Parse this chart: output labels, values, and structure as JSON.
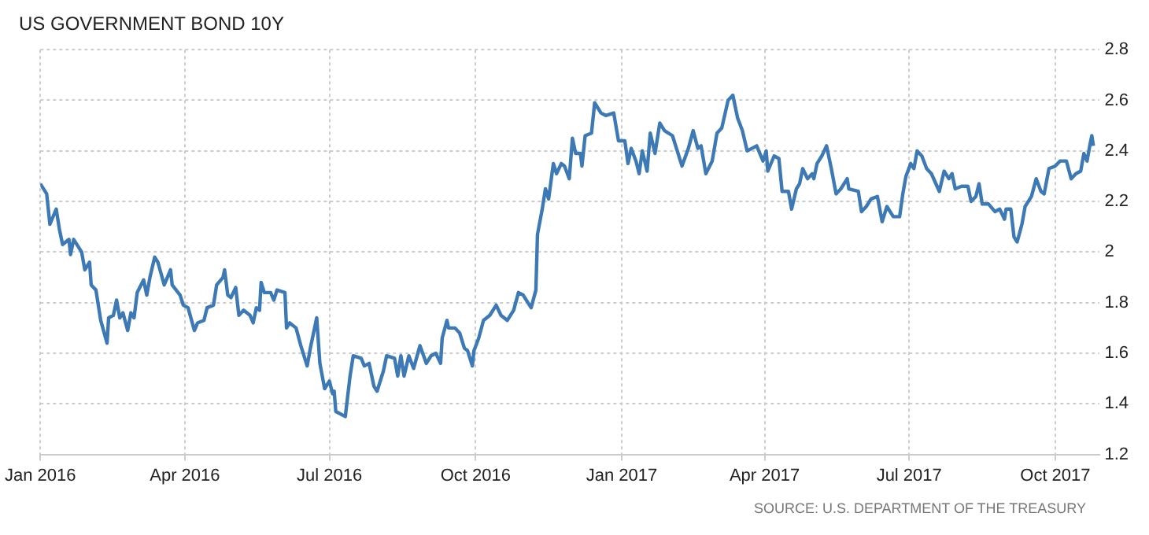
{
  "chart_data": {
    "type": "line",
    "title": "US GOVERNMENT BOND 10Y",
    "annotations": [
      "SOURCE: U.S. DEPARTMENT OF THE TREASURY"
    ],
    "x": [
      "2016-01-01",
      "2016-01-05",
      "2016-01-07",
      "2016-01-11",
      "2016-01-13",
      "2016-01-15",
      "2016-01-19",
      "2016-01-20",
      "2016-01-22",
      "2016-01-27",
      "2016-01-29",
      "2016-02-01",
      "2016-02-02",
      "2016-02-05",
      "2016-02-08",
      "2016-02-12",
      "2016-02-13",
      "2016-02-16",
      "2016-02-18",
      "2016-02-20",
      "2016-02-22",
      "2016-02-25",
      "2016-02-27",
      "2016-02-29",
      "2016-03-02",
      "2016-03-06",
      "2016-03-08",
      "2016-03-10",
      "2016-03-13",
      "2016-03-15",
      "2016-03-19",
      "2016-03-23",
      "2016-03-24",
      "2016-03-29",
      "2016-03-31",
      "2016-04-03",
      "2016-04-07",
      "2016-04-09",
      "2016-04-13",
      "2016-04-15",
      "2016-04-19",
      "2016-04-21",
      "2016-04-25",
      "2016-04-26",
      "2016-04-28",
      "2016-04-30",
      "2016-05-03",
      "2016-05-05",
      "2016-05-08",
      "2016-05-12",
      "2016-05-14",
      "2016-05-16",
      "2016-05-18",
      "2016-05-19",
      "2016-05-21",
      "2016-05-25",
      "2016-05-27",
      "2016-05-29",
      "2016-06-03",
      "2016-06-04",
      "2016-06-06",
      "2016-06-10",
      "2016-06-13",
      "2016-06-17",
      "2016-06-19",
      "2016-06-21",
      "2016-06-23",
      "2016-06-25",
      "2016-06-28",
      "2016-07-01",
      "2016-07-03",
      "2016-07-04",
      "2016-07-05",
      "2016-07-11",
      "2016-07-14",
      "2016-07-16",
      "2016-07-21",
      "2016-07-23",
      "2016-07-26",
      "2016-07-29",
      "2016-07-31",
      "2016-08-04",
      "2016-08-06",
      "2016-08-11",
      "2016-08-13",
      "2016-08-15",
      "2016-08-17",
      "2016-08-20",
      "2016-08-23",
      "2016-08-27",
      "2016-08-31",
      "2016-09-03",
      "2016-09-06",
      "2016-09-09",
      "2016-09-10",
      "2016-09-13",
      "2016-09-14",
      "2016-09-18",
      "2016-09-21",
      "2016-09-24",
      "2016-09-26",
      "2016-09-29",
      "2016-09-30",
      "2016-10-03",
      "2016-10-06",
      "2016-10-10",
      "2016-10-14",
      "2016-10-17",
      "2016-10-21",
      "2016-10-25",
      "2016-10-28",
      "2016-10-31",
      "2016-11-05",
      "2016-11-08",
      "2016-11-09",
      "2016-11-12",
      "2016-11-14",
      "2016-11-16",
      "2016-11-19",
      "2016-11-21",
      "2016-11-24",
      "2016-11-26",
      "2016-11-29",
      "2016-12-01",
      "2016-12-03",
      "2016-12-06",
      "2016-12-07",
      "2016-12-09",
      "2016-12-13",
      "2016-12-15",
      "2016-12-19",
      "2016-12-22",
      "2016-12-27",
      "2016-12-30",
      "2017-01-03",
      "2017-01-05",
      "2017-01-07",
      "2017-01-10",
      "2017-01-12",
      "2017-01-14",
      "2017-01-17",
      "2017-01-19",
      "2017-01-22",
      "2017-01-25",
      "2017-01-28",
      "2017-02-02",
      "2017-02-08",
      "2017-02-12",
      "2017-02-15",
      "2017-02-18",
      "2017-02-20",
      "2017-02-23",
      "2017-02-27",
      "2017-03-02",
      "2017-03-05",
      "2017-03-09",
      "2017-03-12",
      "2017-03-15",
      "2017-03-18",
      "2017-03-21",
      "2017-03-24",
      "2017-03-27",
      "2017-03-31",
      "2017-04-02",
      "2017-04-03",
      "2017-04-07",
      "2017-04-10",
      "2017-04-12",
      "2017-04-16",
      "2017-04-18",
      "2017-04-21",
      "2017-04-23",
      "2017-04-25",
      "2017-04-28",
      "2017-05-01",
      "2017-05-02",
      "2017-05-04",
      "2017-05-07",
      "2017-05-10",
      "2017-05-13",
      "2017-05-16",
      "2017-05-19",
      "2017-05-23",
      "2017-05-24",
      "2017-05-30",
      "2017-06-01",
      "2017-06-04",
      "2017-06-07",
      "2017-06-11",
      "2017-06-14",
      "2017-06-17",
      "2017-06-21",
      "2017-06-25",
      "2017-06-27",
      "2017-06-29",
      "2017-07-02",
      "2017-07-04",
      "2017-07-06",
      "2017-07-09",
      "2017-07-12",
      "2017-07-15",
      "2017-07-20",
      "2017-07-23",
      "2017-07-26",
      "2017-07-28",
      "2017-07-30",
      "2017-08-03",
      "2017-08-07",
      "2017-08-09",
      "2017-08-12",
      "2017-08-14",
      "2017-08-16",
      "2017-08-20",
      "2017-08-24",
      "2017-08-27",
      "2017-08-30",
      "2017-08-31",
      "2017-09-03",
      "2017-09-05",
      "2017-09-07",
      "2017-09-10",
      "2017-09-12",
      "2017-09-16",
      "2017-09-19",
      "2017-09-22",
      "2017-09-24",
      "2017-09-27",
      "2017-10-01",
      "2017-10-04",
      "2017-10-08",
      "2017-10-11",
      "2017-10-14",
      "2017-10-17",
      "2017-10-19",
      "2017-10-21",
      "2017-10-23",
      "2017-10-24",
      "2017-10-25"
    ],
    "series": [
      {
        "color": "#3d7ab5",
        "values": [
          2.27,
          2.23,
          2.11,
          2.17,
          2.09,
          2.03,
          2.05,
          1.99,
          2.05,
          2.0,
          1.93,
          1.96,
          1.87,
          1.85,
          1.73,
          1.64,
          1.74,
          1.75,
          1.81,
          1.74,
          1.76,
          1.69,
          1.76,
          1.74,
          1.84,
          1.89,
          1.83,
          1.9,
          1.98,
          1.96,
          1.87,
          1.93,
          1.87,
          1.83,
          1.79,
          1.78,
          1.69,
          1.72,
          1.73,
          1.78,
          1.79,
          1.87,
          1.9,
          1.93,
          1.83,
          1.82,
          1.86,
          1.75,
          1.77,
          1.75,
          1.72,
          1.78,
          1.77,
          1.88,
          1.84,
          1.84,
          1.81,
          1.85,
          1.84,
          1.7,
          1.72,
          1.7,
          1.63,
          1.55,
          1.62,
          1.68,
          1.74,
          1.56,
          1.46,
          1.49,
          1.44,
          1.45,
          1.37,
          1.35,
          1.51,
          1.59,
          1.58,
          1.55,
          1.56,
          1.47,
          1.45,
          1.53,
          1.59,
          1.58,
          1.51,
          1.59,
          1.51,
          1.59,
          1.54,
          1.63,
          1.56,
          1.59,
          1.6,
          1.56,
          1.66,
          1.73,
          1.7,
          1.7,
          1.68,
          1.62,
          1.61,
          1.55,
          1.61,
          1.66,
          1.73,
          1.75,
          1.79,
          1.75,
          1.73,
          1.77,
          1.84,
          1.83,
          1.78,
          1.85,
          2.07,
          2.17,
          2.25,
          2.21,
          2.35,
          2.31,
          2.35,
          2.34,
          2.29,
          2.45,
          2.39,
          2.39,
          2.34,
          2.46,
          2.47,
          2.59,
          2.55,
          2.54,
          2.55,
          2.44,
          2.44,
          2.35,
          2.41,
          2.36,
          2.31,
          2.4,
          2.32,
          2.47,
          2.39,
          2.51,
          2.48,
          2.46,
          2.34,
          2.41,
          2.48,
          2.41,
          2.42,
          2.31,
          2.36,
          2.47,
          2.49,
          2.6,
          2.62,
          2.53,
          2.48,
          2.4,
          2.41,
          2.42,
          2.36,
          2.4,
          2.32,
          2.38,
          2.37,
          2.24,
          2.24,
          2.17,
          2.25,
          2.27,
          2.33,
          2.29,
          2.31,
          2.29,
          2.35,
          2.38,
          2.42,
          2.33,
          2.23,
          2.25,
          2.29,
          2.25,
          2.24,
          2.16,
          2.18,
          2.21,
          2.22,
          2.12,
          2.18,
          2.14,
          2.14,
          2.23,
          2.3,
          2.35,
          2.33,
          2.4,
          2.38,
          2.33,
          2.31,
          2.24,
          2.32,
          2.29,
          2.31,
          2.25,
          2.26,
          2.26,
          2.2,
          2.22,
          2.27,
          2.19,
          2.19,
          2.16,
          2.17,
          2.13,
          2.17,
          2.17,
          2.06,
          2.04,
          2.11,
          2.18,
          2.22,
          2.29,
          2.24,
          2.23,
          2.33,
          2.34,
          2.36,
          2.36,
          2.29,
          2.31,
          2.32,
          2.39,
          2.36,
          2.43,
          2.46,
          2.42
        ]
      }
    ],
    "xlim": [
      "2016-01-01",
      "2017-10-29"
    ],
    "xticks": [
      {
        "value": "2016-01-01",
        "label": "Jan 2016"
      },
      {
        "value": "2016-04-01",
        "label": "Apr 2016"
      },
      {
        "value": "2016-07-01",
        "label": "Jul 2016"
      },
      {
        "value": "2016-10-01",
        "label": "Oct 2016"
      },
      {
        "value": "2017-01-01",
        "label": "Jan 2017"
      },
      {
        "value": "2017-04-01",
        "label": "Apr 2017"
      },
      {
        "value": "2017-07-01",
        "label": "Jul 2017"
      },
      {
        "value": "2017-10-01",
        "label": "Oct 2017"
      }
    ],
    "ylim": [
      1.2,
      2.8
    ],
    "yticks": [
      1.2,
      1.4,
      1.6,
      1.8,
      2,
      2.2,
      2.4,
      2.6,
      2.8
    ],
    "grid": true,
    "legend": false,
    "marker": "none",
    "line_style": "solid"
  }
}
